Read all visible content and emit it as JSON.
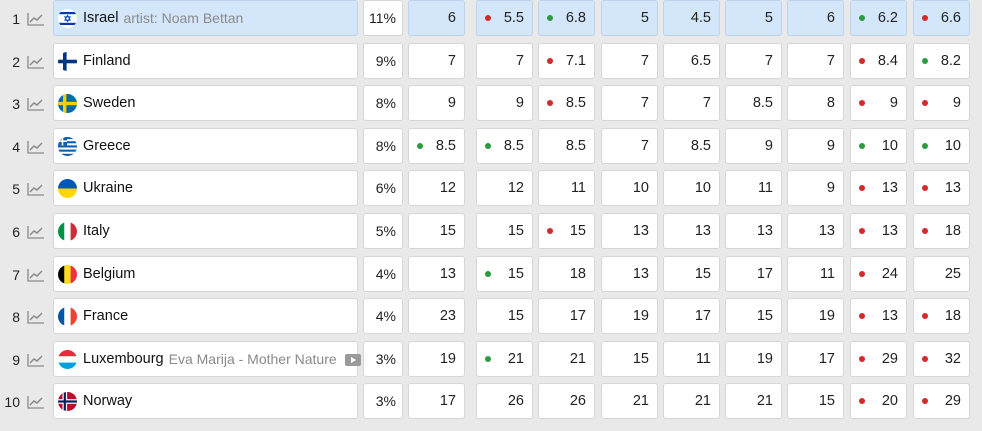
{
  "rows": [
    {
      "rank": "1",
      "country": "Israel",
      "artist": "artist: Noam Bettan",
      "video": false,
      "flag": "israel",
      "pct": "11%",
      "highlight": true,
      "values": [
        {
          "v": "6",
          "dot": ""
        },
        {
          "v": "5.5",
          "dot": "red"
        },
        {
          "v": "6.8",
          "dot": "green"
        },
        {
          "v": "5",
          "dot": ""
        },
        {
          "v": "4.5",
          "dot": ""
        },
        {
          "v": "5",
          "dot": ""
        },
        {
          "v": "6",
          "dot": ""
        },
        {
          "v": "6.2",
          "dot": "green"
        },
        {
          "v": "6.6",
          "dot": "red"
        }
      ]
    },
    {
      "rank": "2",
      "country": "Finland",
      "artist": "",
      "video": false,
      "flag": "finland",
      "pct": "9%",
      "highlight": false,
      "values": [
        {
          "v": "7",
          "dot": ""
        },
        {
          "v": "7",
          "dot": ""
        },
        {
          "v": "7.1",
          "dot": "red"
        },
        {
          "v": "7",
          "dot": ""
        },
        {
          "v": "6.5",
          "dot": ""
        },
        {
          "v": "7",
          "dot": ""
        },
        {
          "v": "7",
          "dot": ""
        },
        {
          "v": "8.4",
          "dot": "red"
        },
        {
          "v": "8.2",
          "dot": "green"
        }
      ]
    },
    {
      "rank": "3",
      "country": "Sweden",
      "artist": "",
      "video": false,
      "flag": "sweden",
      "pct": "8%",
      "highlight": false,
      "values": [
        {
          "v": "9",
          "dot": ""
        },
        {
          "v": "9",
          "dot": ""
        },
        {
          "v": "8.5",
          "dot": "red"
        },
        {
          "v": "7",
          "dot": ""
        },
        {
          "v": "7",
          "dot": ""
        },
        {
          "v": "8.5",
          "dot": ""
        },
        {
          "v": "8",
          "dot": ""
        },
        {
          "v": "9",
          "dot": "red"
        },
        {
          "v": "9",
          "dot": "red"
        }
      ]
    },
    {
      "rank": "4",
      "country": "Greece",
      "artist": "",
      "video": false,
      "flag": "greece",
      "pct": "8%",
      "highlight": false,
      "values": [
        {
          "v": "8.5",
          "dot": "green"
        },
        {
          "v": "8.5",
          "dot": "green"
        },
        {
          "v": "8.5",
          "dot": ""
        },
        {
          "v": "7",
          "dot": ""
        },
        {
          "v": "8.5",
          "dot": ""
        },
        {
          "v": "9",
          "dot": ""
        },
        {
          "v": "9",
          "dot": ""
        },
        {
          "v": "10",
          "dot": "green"
        },
        {
          "v": "10",
          "dot": "green"
        }
      ]
    },
    {
      "rank": "5",
      "country": "Ukraine",
      "artist": "",
      "video": false,
      "flag": "ukraine",
      "pct": "6%",
      "highlight": false,
      "values": [
        {
          "v": "12",
          "dot": ""
        },
        {
          "v": "12",
          "dot": ""
        },
        {
          "v": "11",
          "dot": ""
        },
        {
          "v": "10",
          "dot": ""
        },
        {
          "v": "10",
          "dot": ""
        },
        {
          "v": "11",
          "dot": ""
        },
        {
          "v": "9",
          "dot": ""
        },
        {
          "v": "13",
          "dot": "red"
        },
        {
          "v": "13",
          "dot": "red"
        }
      ]
    },
    {
      "rank": "6",
      "country": "Italy",
      "artist": "",
      "video": false,
      "flag": "italy",
      "pct": "5%",
      "highlight": false,
      "values": [
        {
          "v": "15",
          "dot": ""
        },
        {
          "v": "15",
          "dot": ""
        },
        {
          "v": "15",
          "dot": "red"
        },
        {
          "v": "13",
          "dot": ""
        },
        {
          "v": "13",
          "dot": ""
        },
        {
          "v": "13",
          "dot": ""
        },
        {
          "v": "13",
          "dot": ""
        },
        {
          "v": "13",
          "dot": "red"
        },
        {
          "v": "18",
          "dot": "red"
        }
      ]
    },
    {
      "rank": "7",
      "country": "Belgium",
      "artist": "",
      "video": false,
      "flag": "belgium",
      "pct": "4%",
      "highlight": false,
      "values": [
        {
          "v": "13",
          "dot": ""
        },
        {
          "v": "15",
          "dot": "green"
        },
        {
          "v": "18",
          "dot": ""
        },
        {
          "v": "13",
          "dot": ""
        },
        {
          "v": "15",
          "dot": ""
        },
        {
          "v": "17",
          "dot": ""
        },
        {
          "v": "11",
          "dot": ""
        },
        {
          "v": "24",
          "dot": "red"
        },
        {
          "v": "25",
          "dot": ""
        }
      ]
    },
    {
      "rank": "8",
      "country": "France",
      "artist": "",
      "video": false,
      "flag": "france",
      "pct": "4%",
      "highlight": false,
      "values": [
        {
          "v": "23",
          "dot": ""
        },
        {
          "v": "15",
          "dot": ""
        },
        {
          "v": "17",
          "dot": ""
        },
        {
          "v": "19",
          "dot": ""
        },
        {
          "v": "17",
          "dot": ""
        },
        {
          "v": "15",
          "dot": ""
        },
        {
          "v": "19",
          "dot": ""
        },
        {
          "v": "13",
          "dot": "red"
        },
        {
          "v": "18",
          "dot": "red"
        }
      ]
    },
    {
      "rank": "9",
      "country": "Luxembourg",
      "artist": "Eva Marija - Mother Nature",
      "video": true,
      "flag": "luxembourg",
      "pct": "3%",
      "highlight": false,
      "values": [
        {
          "v": "19",
          "dot": ""
        },
        {
          "v": "21",
          "dot": "green"
        },
        {
          "v": "21",
          "dot": ""
        },
        {
          "v": "15",
          "dot": ""
        },
        {
          "v": "11",
          "dot": ""
        },
        {
          "v": "19",
          "dot": ""
        },
        {
          "v": "17",
          "dot": ""
        },
        {
          "v": "29",
          "dot": "red"
        },
        {
          "v": "32",
          "dot": "red"
        }
      ]
    },
    {
      "rank": "10",
      "country": "Norway",
      "artist": "",
      "video": false,
      "flag": "norway",
      "pct": "3%",
      "highlight": false,
      "values": [
        {
          "v": "17",
          "dot": ""
        },
        {
          "v": "26",
          "dot": ""
        },
        {
          "v": "26",
          "dot": ""
        },
        {
          "v": "21",
          "dot": ""
        },
        {
          "v": "21",
          "dot": ""
        },
        {
          "v": "21",
          "dot": ""
        },
        {
          "v": "15",
          "dot": ""
        },
        {
          "v": "20",
          "dot": "red"
        },
        {
          "v": "29",
          "dot": "red"
        }
      ]
    }
  ],
  "colors": {
    "highlight": "#d3e6fa",
    "dot_red": "#d32a2a",
    "dot_green": "#2a9c3f",
    "background": "#e9e9e9"
  }
}
